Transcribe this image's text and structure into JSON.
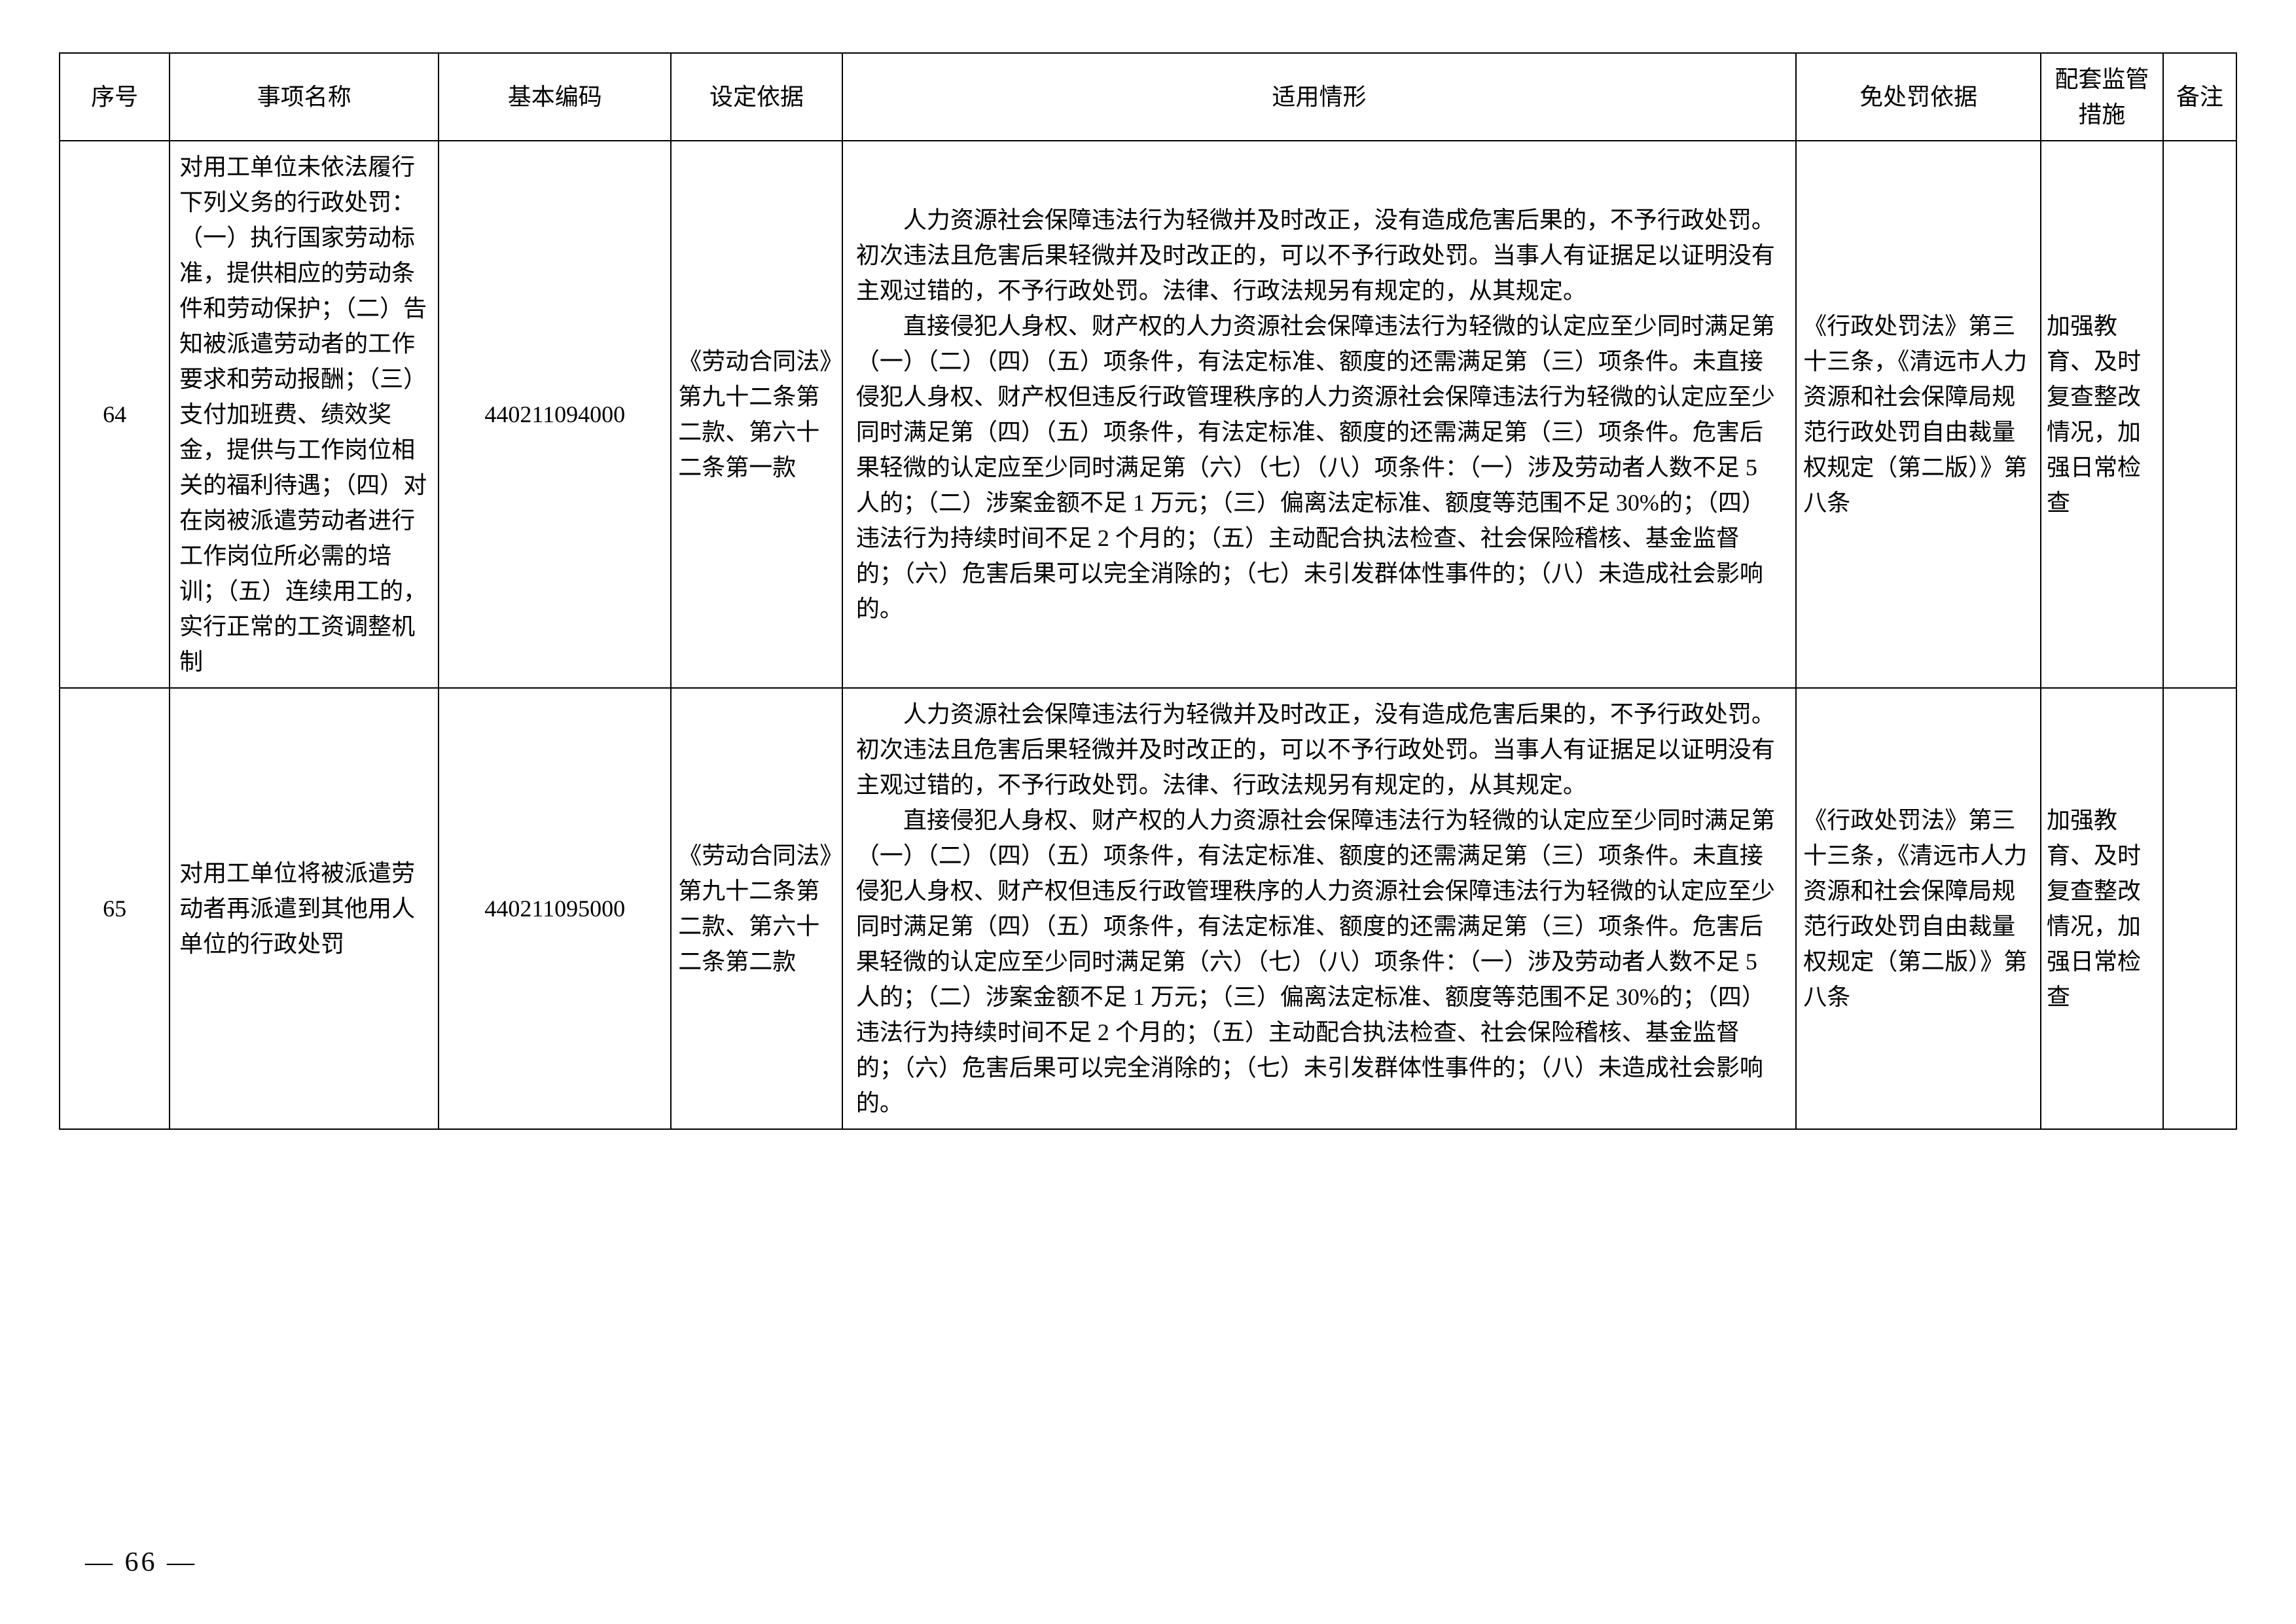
{
  "table": {
    "headers": {
      "seq": "序号",
      "name": "事项名称",
      "code": "基本编码",
      "basis": "设定依据",
      "situation": "适用情形",
      "exempt": "免处罚依据",
      "measure": "配套监管措施",
      "remark": "备注"
    },
    "rows": [
      {
        "seq": "64",
        "name": "对用工单位未依法履行下列义务的行政处罚：（一）执行国家劳动标准，提供相应的劳动条件和劳动保护；（二）告知被派遣劳动者的工作要求和劳动报酬；（三）支付加班费、绩效奖金，提供与工作岗位相关的福利待遇；（四）对在岗被派遣劳动者进行工作岗位所必需的培训；（五）连续用工的，实行正常的工资调整机制",
        "code": "440211094000",
        "basis": "《劳动合同法》第九十二条第二款、第六十二条第一款",
        "situation_p1": "人力资源社会保障违法行为轻微并及时改正，没有造成危害后果的，不予行政处罚。初次违法且危害后果轻微并及时改正的，可以不予行政处罚。当事人有证据足以证明没有主观过错的，不予行政处罚。法律、行政法规另有规定的，从其规定。",
        "situation_p2": "直接侵犯人身权、财产权的人力资源社会保障违法行为轻微的认定应至少同时满足第（一）（二）（四）（五）项条件，有法定标准、额度的还需满足第（三）项条件。未直接侵犯人身权、财产权但违反行政管理秩序的人力资源社会保障违法行为轻微的认定应至少同时满足第（四）（五）项条件，有法定标准、额度的还需满足第（三）项条件。危害后果轻微的认定应至少同时满足第（六）（七）（八）项条件：（一）涉及劳动者人数不足 5 人的；（二）涉案金额不足 1 万元；（三）偏离法定标准、额度等范围不足 30%的；（四）违法行为持续时间不足 2 个月的；（五）主动配合执法检查、社会保险稽核、基金监督的；（六）危害后果可以完全消除的；（七）未引发群体性事件的；（八）未造成社会影响的。",
        "exempt": "《行政处罚法》第三十三条，《清远市人力资源和社会保障局规范行政处罚自由裁量权规定（第二版）》第八条",
        "measure": "加强教育、及时复查整改情况，加强日常检查",
        "remark": ""
      },
      {
        "seq": "65",
        "name": "对用工单位将被派遣劳动者再派遣到其他用人单位的行政处罚",
        "code": "440211095000",
        "basis": "《劳动合同法》第九十二条第二款、第六十二条第二款",
        "situation_p1": "人力资源社会保障违法行为轻微并及时改正，没有造成危害后果的，不予行政处罚。初次违法且危害后果轻微并及时改正的，可以不予行政处罚。当事人有证据足以证明没有主观过错的，不予行政处罚。法律、行政法规另有规定的，从其规定。",
        "situation_p2": "直接侵犯人身权、财产权的人力资源社会保障违法行为轻微的认定应至少同时满足第（一）（二）（四）（五）项条件，有法定标准、额度的还需满足第（三）项条件。未直接侵犯人身权、财产权但违反行政管理秩序的人力资源社会保障违法行为轻微的认定应至少同时满足第（四）（五）项条件，有法定标准、额度的还需满足第（三）项条件。危害后果轻微的认定应至少同时满足第（六）（七）（八）项条件：（一）涉及劳动者人数不足 5 人的；（二）涉案金额不足 1 万元；（三）偏离法定标准、额度等范围不足 30%的；（四）违法行为持续时间不足 2 个月的；（五）主动配合执法检查、社会保险稽核、基金监督的；（六）危害后果可以完全消除的；（七）未引发群体性事件的；（八）未造成社会影响的。",
        "exempt": "《行政处罚法》第三十三条，《清远市人力资源和社会保障局规范行政处罚自由裁量权规定（第二版）》第八条",
        "measure": "加强教育、及时复查整改情况，加强日常检查",
        "remark": ""
      }
    ]
  },
  "page_number": "— 66 —"
}
